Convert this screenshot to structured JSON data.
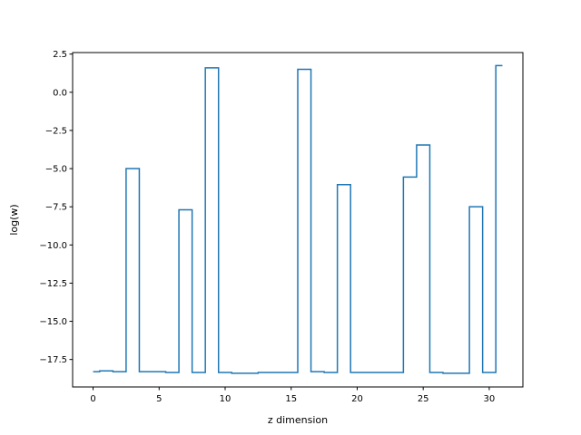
{
  "chart_data": {
    "type": "line",
    "drawstyle": "steps-mid",
    "title": "",
    "xlabel": "z dimension",
    "ylabel": "log(w)",
    "xlim": [
      -1.55,
      32.55
    ],
    "ylim": [
      -19.3,
      2.6
    ],
    "xticks": [
      0,
      5,
      10,
      15,
      20,
      25,
      30
    ],
    "yticks": [
      2.5,
      0.0,
      -2.5,
      -5.0,
      -7.5,
      -10.0,
      -12.5,
      -15.0,
      -17.5
    ],
    "xtick_labels": [
      "0",
      "5",
      "10",
      "15",
      "20",
      "25",
      "30"
    ],
    "ytick_labels": [
      "2.5",
      "0.0",
      "−2.5",
      "−5.0",
      "−7.5",
      "−10.0",
      "−12.5",
      "−15.0",
      "−17.5"
    ],
    "grid": false,
    "line_color": "#1f77b4",
    "series": [
      {
        "x": [
          0,
          1,
          2,
          3,
          4,
          5,
          6,
          7,
          8,
          9,
          10,
          11,
          12,
          13,
          14,
          15,
          16,
          17,
          18,
          19,
          20,
          21,
          22,
          23,
          24,
          25,
          26,
          27,
          28,
          29,
          30,
          31
        ],
        "values": [
          -18.3,
          -18.25,
          -18.3,
          -5.0,
          -18.3,
          -18.3,
          -18.35,
          -7.7,
          -18.35,
          1.6,
          -18.35,
          -18.4,
          -18.4,
          -18.35,
          -18.35,
          -18.35,
          1.5,
          -18.3,
          -18.35,
          -6.05,
          -18.35,
          -18.35,
          -18.35,
          -18.35,
          -5.55,
          -3.45,
          -18.35,
          -18.4,
          -18.4,
          -7.5,
          -18.35,
          1.75
        ]
      }
    ]
  }
}
